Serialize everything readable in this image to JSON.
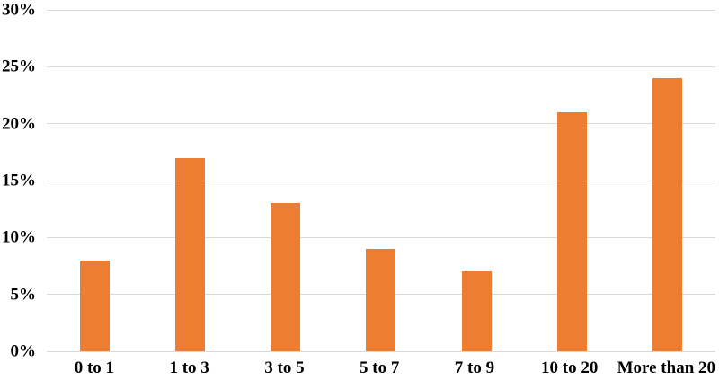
{
  "chart_data": {
    "type": "bar",
    "categories": [
      "0 to 1",
      "1 to 3",
      "3 to 5",
      "5 to 7",
      "7 to 9",
      "10 to 20",
      "More than 20"
    ],
    "values": [
      8,
      17,
      13,
      9,
      7,
      21,
      24
    ],
    "title": "",
    "xlabel": "",
    "ylabel": "",
    "ylim": [
      0,
      30
    ],
    "ytick_step": 5,
    "ytick_labels": [
      "0%",
      "5%",
      "10%",
      "15%",
      "20%",
      "25%",
      "30%"
    ],
    "grid": true,
    "legend_position": "none",
    "colors": {
      "bar": "#ED7D31",
      "gridline": "#D9D9D9",
      "baseline": "#D9D9D9",
      "label": "#000000",
      "background": "#FFFFFF"
    }
  }
}
